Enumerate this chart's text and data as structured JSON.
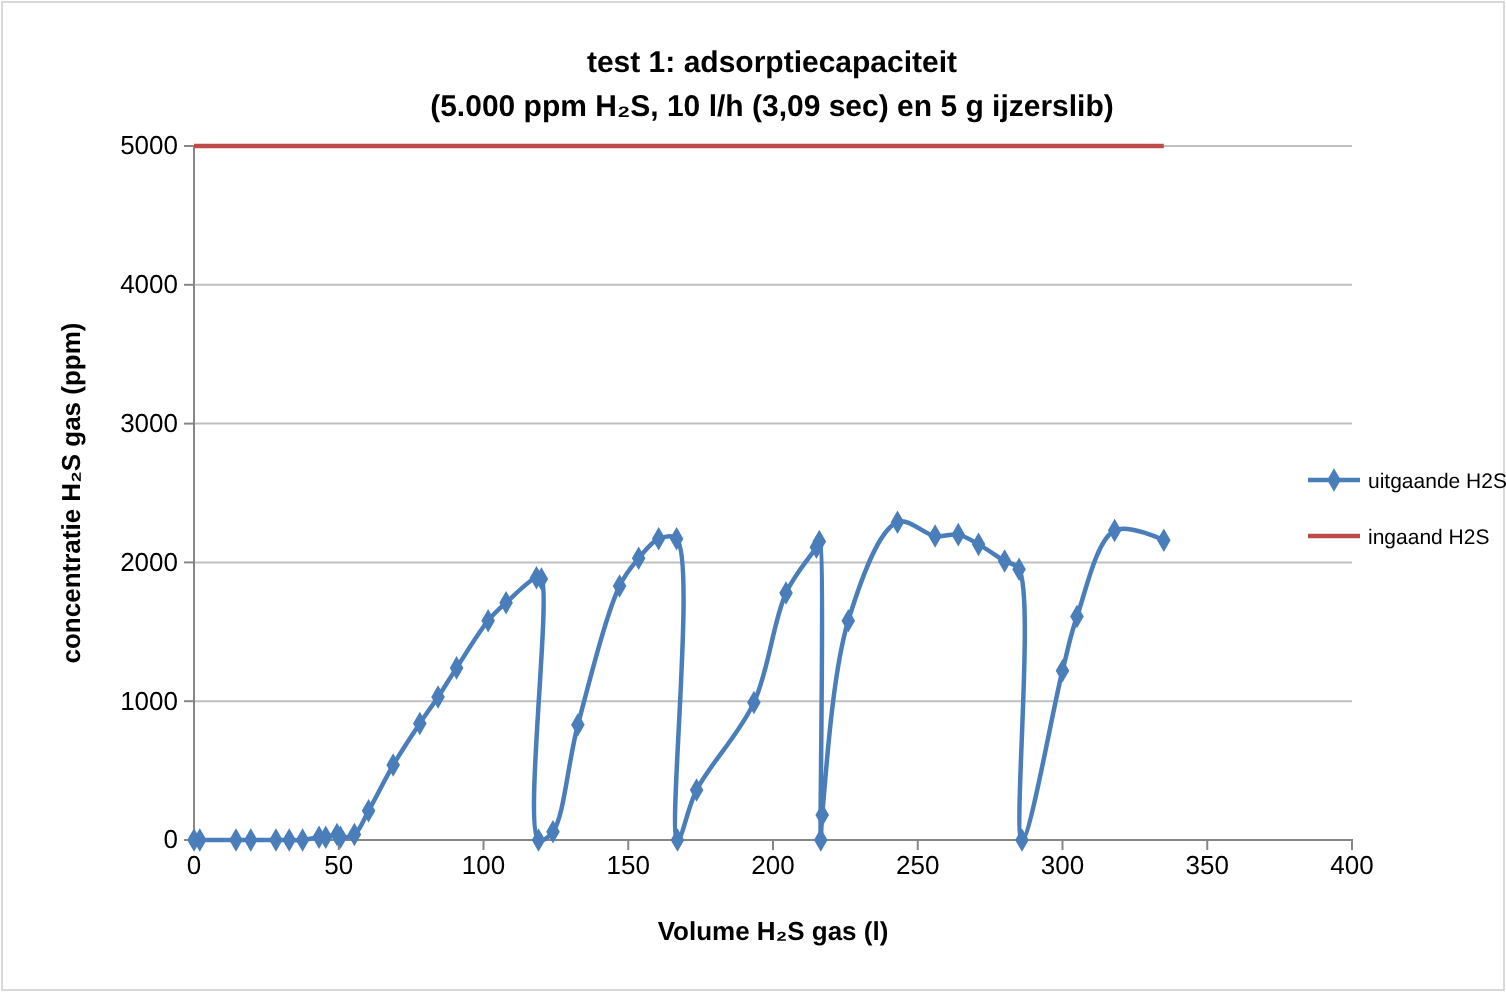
{
  "chart_data": {
    "type": "line",
    "title": "test 1: adsorptiecapaciteit",
    "subtitle": "(5.000 ppm H₂S, 10 l/h (3,09 sec) en 5 g ijzerslib)",
    "xlabel": "Volume H₂S gas (l)",
    "ylabel": "concentratie H₂S gas (ppm)",
    "xlim": [
      0,
      400
    ],
    "xticks": [
      0,
      50,
      100,
      150,
      200,
      250,
      300,
      350,
      400
    ],
    "ylim": [
      0,
      5000
    ],
    "yticks": [
      0,
      1000,
      2000,
      3000,
      4000,
      5000
    ],
    "grid": "y",
    "legend": "right",
    "marker": "diamond",
    "line_style": "solid",
    "series": [
      {
        "name": "uitgaande H2S",
        "color": "#4a7ebb",
        "x": [
          0,
          2,
          14.5,
          19.6,
          28.3,
          32.9,
          37.5,
          43.2,
          45.5,
          49.4,
          50.6,
          55.4,
          60.3,
          68.8,
          78,
          84.3,
          90.7,
          101.6,
          107.8,
          118.3,
          120,
          119,
          124,
          132.6,
          147,
          153.6,
          160.5,
          166.7,
          167,
          173.6,
          193.4,
          204.5,
          215,
          216,
          216.5,
          217,
          226,
          243,
          256,
          264,
          271,
          280,
          285,
          286,
          300,
          305,
          318,
          335
        ],
        "values": [
          0,
          0,
          0,
          0,
          0,
          0,
          0,
          20,
          20,
          40,
          20,
          40,
          210,
          540,
          840,
          1030,
          1240,
          1580,
          1710,
          1890,
          1880,
          0,
          60,
          830,
          1830,
          2030,
          2170,
          2170,
          0,
          360,
          990,
          1780,
          2110,
          2150,
          0,
          180,
          1580,
          2290,
          2190,
          2200,
          2130,
          2010,
          1950,
          0,
          1220,
          1610,
          2230,
          2160
        ]
      },
      {
        "name": "ingaand H2S",
        "color": "#be4b48",
        "marker": "none",
        "x": [
          0,
          335
        ],
        "values": [
          5000,
          5000
        ]
      }
    ]
  }
}
